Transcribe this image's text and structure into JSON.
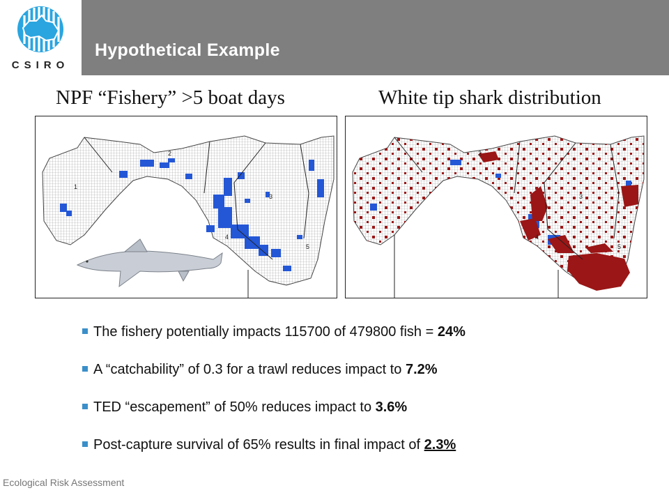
{
  "header": {
    "logo_text": "CSIRO",
    "title": "Hypothetical Example"
  },
  "maps": {
    "left_title": "NPF “Fishery”  >5 boat days",
    "right_title": "White tip shark distribution",
    "region_labels": [
      "1",
      "2",
      "3",
      "4",
      "5"
    ]
  },
  "bullets": [
    {
      "text": "The fishery potentially impacts 115700 of 479800 fish = ",
      "value": "24%"
    },
    {
      "text": "A “catchability” of 0.3 for a trawl reduces impact to ",
      "value": "7.2%"
    },
    {
      "text": "TED “escapement” of 50% reduces impact to ",
      "value": "3.6%"
    },
    {
      "text": "Post-capture survival of 65% results in final impact of ",
      "value": "2.3%"
    }
  ],
  "footer": {
    "text": "Ecological Risk Assessment"
  },
  "colors": {
    "header_bar": "#7f7f7f",
    "logo_blue": "#2aa5e0",
    "fishery_blue": "#2457d6",
    "shark_red": "#9b1616",
    "bullet": "#3a8fc9"
  }
}
